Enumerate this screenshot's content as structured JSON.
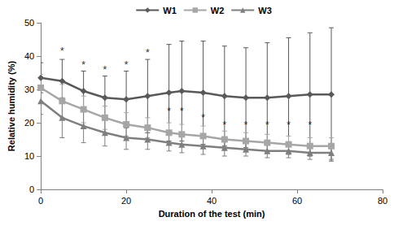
{
  "chart_data": {
    "type": "line",
    "x_label": "Duration of the test (min)",
    "y_label": "Relative humidity (%)",
    "x": [
      0,
      5,
      10,
      15,
      20,
      25,
      30,
      33,
      38,
      43,
      48,
      53,
      58,
      63,
      68
    ],
    "series": [
      {
        "name": "W1",
        "color": "#595959",
        "marker": "diamond",
        "values": [
          33.5,
          32.5,
          29.5,
          27.5,
          27,
          28,
          29,
          29.5,
          29,
          28,
          27.5,
          27.5,
          28,
          28.5,
          28.5
        ],
        "errors": [
          4.5,
          6.5,
          6,
          6.5,
          8.5,
          11,
          14.5,
          15,
          15.5,
          15,
          15,
          16.5,
          17.5,
          18.5,
          20
        ]
      },
      {
        "name": "W2",
        "color": "#a6a6a6",
        "marker": "square",
        "values": [
          30.5,
          26.5,
          24,
          21.5,
          19.5,
          18.5,
          17,
          16.5,
          16,
          15,
          14.5,
          14,
          13.5,
          13,
          13
        ],
        "errors": [
          4,
          5,
          4,
          3.5,
          3.5,
          3,
          3,
          3,
          3,
          2.5,
          2.5,
          2.5,
          2.5,
          2.5,
          2.5
        ]
      },
      {
        "name": "W3",
        "color": "#7f7f7f",
        "marker": "triangle",
        "values": [
          26.5,
          21.5,
          19,
          17,
          15.5,
          15,
          14,
          13.5,
          13,
          12.5,
          12,
          11.5,
          11.5,
          11,
          11
        ],
        "errors": [
          4,
          6,
          5,
          4,
          3.5,
          3,
          2.5,
          2.5,
          2.5,
          2.5,
          2,
          2,
          2,
          2,
          2
        ]
      }
    ],
    "annotations": [
      {
        "text": "*",
        "x": 5,
        "y": 41.5
      },
      {
        "text": "*",
        "x": 10,
        "y": 37.5
      },
      {
        "text": "*",
        "x": 15,
        "y": 36
      },
      {
        "text": "*",
        "x": 20,
        "y": 37.5
      },
      {
        "text": "*",
        "x": 25,
        "y": 41
      },
      {
        "text": "*",
        "x": 30,
        "y": 23.5
      },
      {
        "text": "*",
        "x": 33,
        "y": 23.5
      },
      {
        "text": "*",
        "x": 38,
        "y": 21.5
      },
      {
        "text": "*",
        "x": 43,
        "y": 19.5
      },
      {
        "text": "*",
        "x": 48,
        "y": 19.5
      },
      {
        "text": "*",
        "x": 53,
        "y": 19.5
      },
      {
        "text": "*",
        "x": 58,
        "y": 19.5
      },
      {
        "text": "*",
        "x": 63,
        "y": 19.5
      }
    ],
    "xlim": [
      0,
      80
    ],
    "xticks": [
      0,
      20,
      40,
      60,
      80
    ],
    "ylim": [
      0,
      50
    ],
    "yticks": [
      0,
      10,
      20,
      30,
      40,
      50
    ],
    "legend": "top",
    "grid": false
  }
}
